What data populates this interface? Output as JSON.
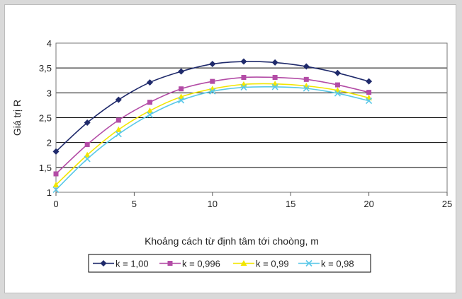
{
  "chart_data": {
    "type": "line",
    "title": "",
    "xlabel": "Khoảng cách từ định tâm tới choòng, m",
    "ylabel": "Giá trị R",
    "xlim": [
      0,
      25
    ],
    "ylim": [
      1,
      4
    ],
    "xticks": [
      0,
      5,
      10,
      15,
      20,
      25
    ],
    "xtick_labels": [
      "0",
      "5",
      "10",
      "15",
      "20",
      "25"
    ],
    "yticks": [
      1,
      1.5,
      2,
      2.5,
      3,
      3.5,
      4
    ],
    "ytick_labels": [
      "1",
      "1,5",
      "2",
      "2,5",
      "3",
      "3,5",
      "4"
    ],
    "grid": "horizontal",
    "legend": "bottom",
    "x": [
      0,
      2,
      4,
      6,
      8,
      10,
      12,
      14,
      16,
      18,
      20
    ],
    "series": [
      {
        "name": "k = 1,00",
        "color": "#1f2a6b",
        "marker": "diamond",
        "values": [
          1.82,
          2.4,
          2.86,
          3.21,
          3.43,
          3.58,
          3.63,
          3.61,
          3.53,
          3.4,
          3.23
        ]
      },
      {
        "name": "k = 0,996",
        "color": "#b34ca6",
        "marker": "square",
        "values": [
          1.37,
          1.96,
          2.45,
          2.81,
          3.08,
          3.23,
          3.31,
          3.31,
          3.27,
          3.16,
          3.01
        ]
      },
      {
        "name": "k = 0,99",
        "color": "#f2e600",
        "marker": "triangle",
        "values": [
          1.15,
          1.75,
          2.26,
          2.64,
          2.92,
          3.08,
          3.17,
          3.18,
          3.14,
          3.05,
          2.9
        ]
      },
      {
        "name": "k = 0,98",
        "color": "#5ac8e8",
        "marker": "x",
        "values": [
          1.05,
          1.67,
          2.17,
          2.56,
          2.85,
          3.03,
          3.11,
          3.12,
          3.09,
          2.99,
          2.84
        ]
      }
    ]
  }
}
